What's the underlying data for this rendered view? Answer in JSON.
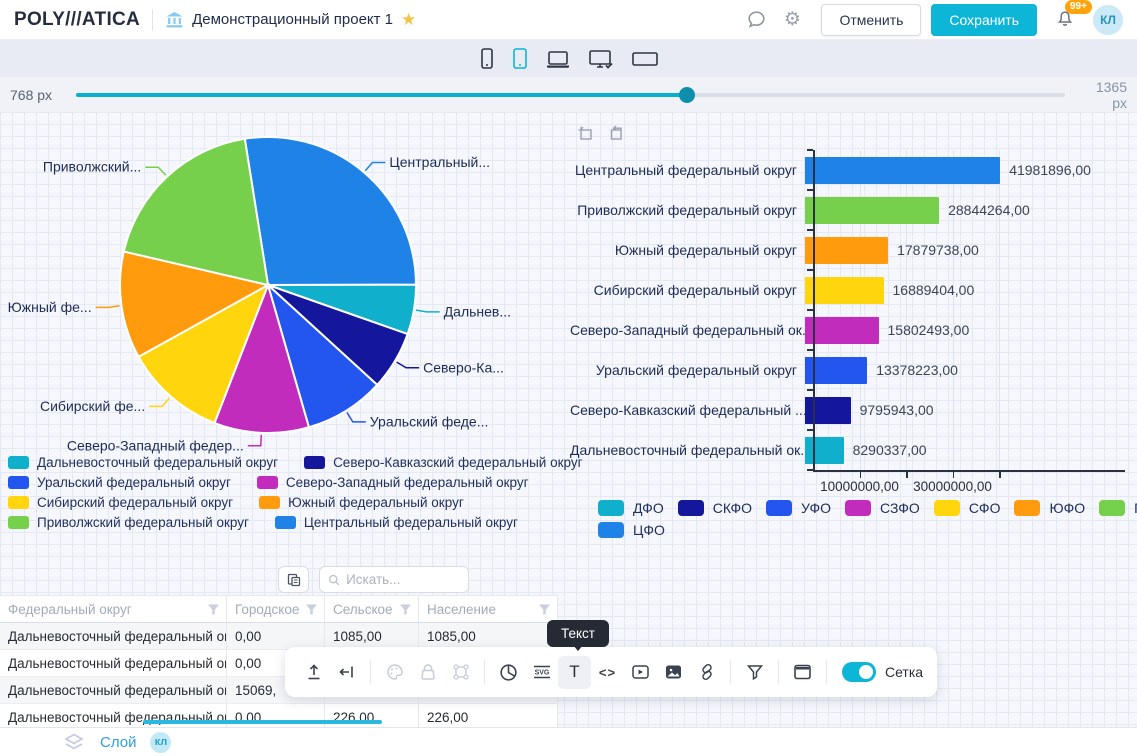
{
  "header": {
    "logo": "POLY///ATICA",
    "title": "Демонстрационный проект 1",
    "cancel_label": "Отменить",
    "save_label": "Сохранить",
    "notification_count": "99+",
    "avatar_initials": "КЛ"
  },
  "glyphs": {
    "star": "★",
    "gear": "⚙"
  },
  "width_slider": {
    "min_label": "768 px",
    "max_label": "1365 px"
  },
  "colors": {
    "accent": "#0db5d7",
    "badge_orange": "#ffa40d",
    "link_blue": "#2e9fe0",
    "grid_line": "#e4e9f4"
  },
  "chart_data": [
    {
      "type": "pie",
      "title": "",
      "start_angle_deg": -9,
      "slices": [
        {
          "name": "Центральный федеральный округ",
          "label": "Центральный...",
          "value": 41981896,
          "color": "#1e82e6"
        },
        {
          "name": "Дальневосточный федеральный округ",
          "label": "Дальнев...",
          "value": 8290337,
          "color": "#10b0cd"
        },
        {
          "name": "Северо-Кавказский федеральный округ",
          "label": "Северо-Ка...",
          "value": 9795943,
          "color": "#14169c"
        },
        {
          "name": "Уральский федеральный округ",
          "label": "Уральский феде...",
          "value": 13378223,
          "color": "#2356ee"
        },
        {
          "name": "Северо-Западный федеральный округ",
          "label": "Северо-Западный федер...",
          "value": 15802493,
          "color": "#c12cbc"
        },
        {
          "name": "Сибирский федеральный округ",
          "label": "Сибирский фе...",
          "value": 16889404,
          "color": "#ffd60d"
        },
        {
          "name": "Южный федеральный округ",
          "label": "Южный фе...",
          "value": 17879738,
          "color": "#ff9b0c"
        },
        {
          "name": "Приволжский федеральный округ",
          "label": "Приволжский...",
          "value": 28844264,
          "color": "#76d04c"
        }
      ],
      "legend": [
        {
          "label": "Дальневосточный федеральный округ",
          "color": "#10b0cd"
        },
        {
          "label": "Северо-Кавказский федеральный округ",
          "color": "#14169c"
        },
        {
          "label": "Уральский федеральный округ",
          "color": "#2356ee"
        },
        {
          "label": "Северо-Западный федеральный округ",
          "color": "#c12cbc"
        },
        {
          "label": "Сибирский федеральный округ",
          "color": "#ffd60d"
        },
        {
          "label": "Южный федеральный округ",
          "color": "#ff9b0c"
        },
        {
          "label": "Приволжский федеральный округ",
          "color": "#76d04c"
        },
        {
          "label": "Центральный федеральный округ",
          "color": "#1e82e6"
        }
      ]
    },
    {
      "type": "bar",
      "orientation": "horizontal",
      "categories": [
        "Центральный федеральный округ",
        "Приволжский федеральный округ",
        "Южный федеральный округ",
        "Сибирский федеральный округ",
        "Северо-Западный федеральный ок...",
        "Уральский федеральный округ",
        "Северо-Кавказский федеральный ...",
        "Дальневосточный федеральный ок..."
      ],
      "values": [
        41981896,
        28844264,
        17879738,
        16889404,
        15802493,
        13378223,
        9795943,
        8290337
      ],
      "value_labels": [
        "41981896,00",
        "28844264,00",
        "17879738,00",
        "16889404,00",
        "15802493,00",
        "13378223,00",
        "9795943,00",
        "8290337,00"
      ],
      "colors": [
        "#1e82e6",
        "#76d04c",
        "#ff9b0c",
        "#ffd60d",
        "#c12cbc",
        "#2356ee",
        "#14169c",
        "#10b0cd"
      ],
      "xlim": [
        0,
        50000000
      ],
      "x_ticks": [
        {
          "value": 10000000,
          "label": "10000000,00"
        },
        {
          "value": 20000000,
          "label": ""
        },
        {
          "value": 30000000,
          "label": "30000000,00"
        },
        {
          "value": 40000000,
          "label": ""
        }
      ],
      "legend": [
        {
          "label": "ДФО",
          "color": "#10b0cd"
        },
        {
          "label": "СКФО",
          "color": "#14169c"
        },
        {
          "label": "УФО",
          "color": "#2356ee"
        },
        {
          "label": "СЗФО",
          "color": "#c12cbc"
        },
        {
          "label": "СФО",
          "color": "#ffd60d"
        },
        {
          "label": "ЮФО",
          "color": "#ff9b0c"
        },
        {
          "label": "ПФО",
          "color": "#76d04c"
        },
        {
          "label": "ЦФО",
          "color": "#1e82e6"
        }
      ]
    }
  ],
  "table": {
    "search_placeholder": "Искать...",
    "columns": [
      "Федеральный округ",
      "Городское",
      "Сельское",
      "Население"
    ],
    "rows": [
      [
        "Дальневосточный федеральный округ",
        "0,00",
        "1085,00",
        "1085,00"
      ],
      [
        "Дальневосточный федеральный округ",
        "0,00",
        "",
        ""
      ],
      [
        "Дальневосточный федеральный округ",
        "15069,",
        "",
        ""
      ],
      [
        "Дальневосточный федеральный округ",
        "0,00",
        "226,00",
        "226,00"
      ]
    ]
  },
  "toolbar": {
    "tooltip": "Текст",
    "grid_toggle_label": "Сетка",
    "grid_on": true
  },
  "footer": {
    "layer_label": "Слой",
    "badge": "кл"
  }
}
